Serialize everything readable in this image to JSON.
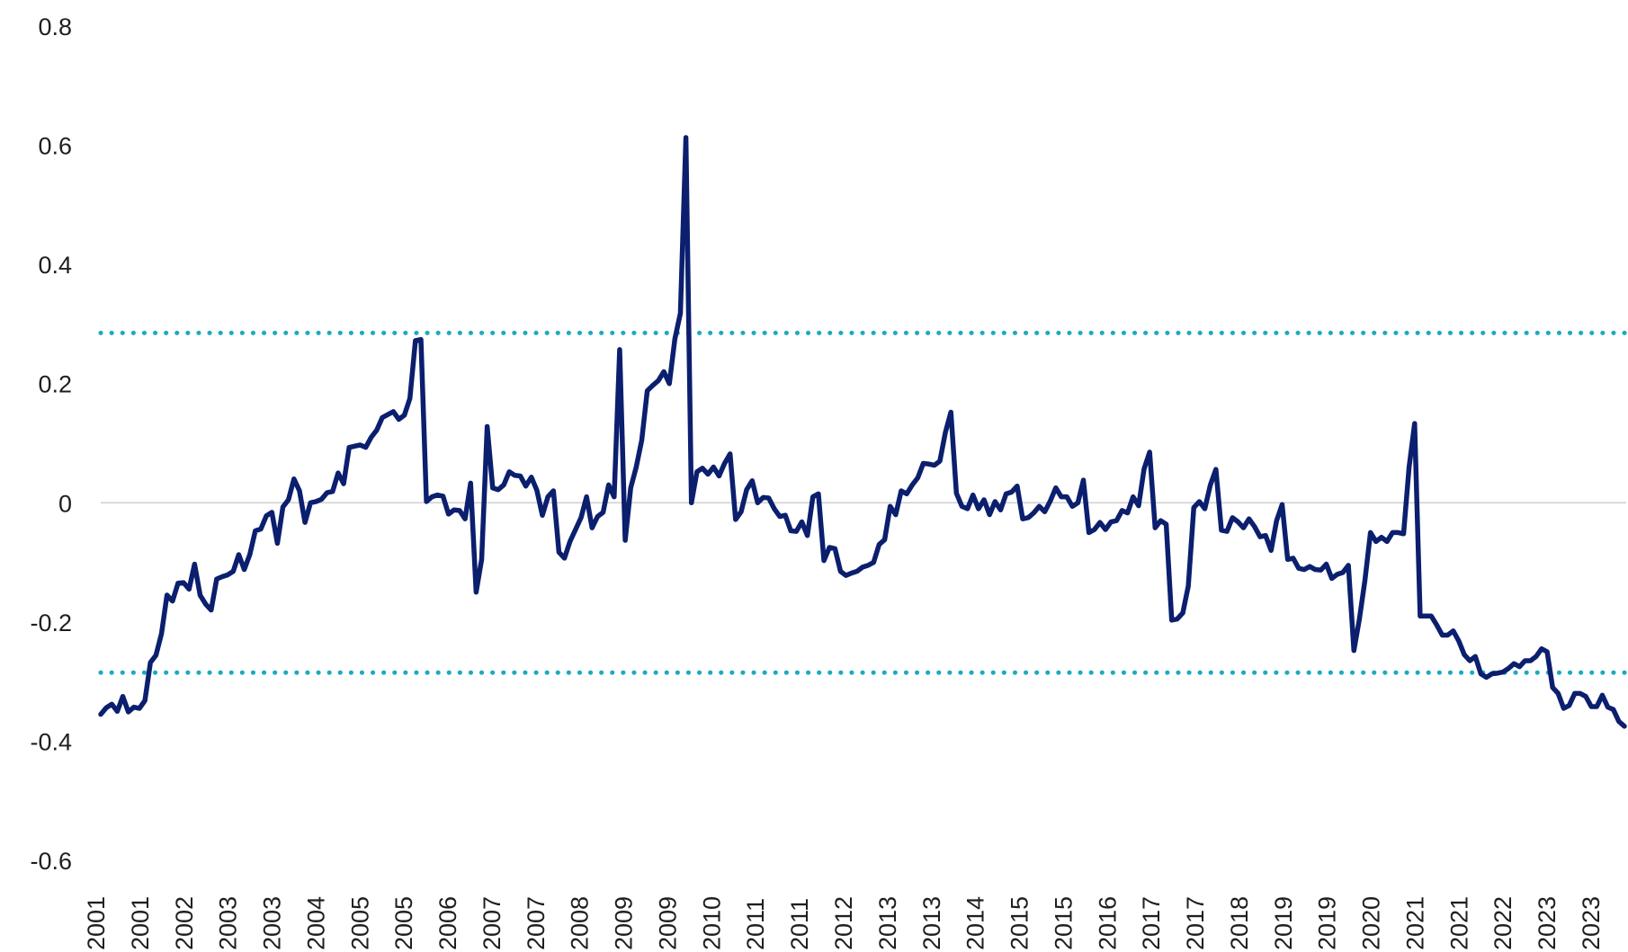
{
  "chart_data": {
    "type": "line",
    "title": "",
    "xlabel": "",
    "ylabel": "",
    "ylim": [
      -0.6,
      0.8
    ],
    "y_ticks": [
      "0.8",
      "0.6",
      "0.4",
      "0.2",
      "0",
      "-0.2",
      "-0.4",
      "-0.6"
    ],
    "x_tick_labels": [
      "2001",
      "2001",
      "2002",
      "2003",
      "2003",
      "2004",
      "2005",
      "2005",
      "2006",
      "2007",
      "2007",
      "2008",
      "2009",
      "2009",
      "2010",
      "2011",
      "2011",
      "2012",
      "2013",
      "2013",
      "2014",
      "2015",
      "2015",
      "2016",
      "2017",
      "2017",
      "2018",
      "2019",
      "2019",
      "2020",
      "2021",
      "2021",
      "2022",
      "2023",
      "2023"
    ],
    "grid": false,
    "legend": "none",
    "zero_line": true,
    "series": [
      {
        "color": "#0b1f6e",
        "values": [
          -0.355,
          -0.344,
          -0.338,
          -0.35,
          -0.325,
          -0.351,
          -0.343,
          -0.345,
          -0.332,
          -0.268,
          -0.256,
          -0.22,
          -0.155,
          -0.165,
          -0.135,
          -0.134,
          -0.145,
          -0.103,
          -0.155,
          -0.17,
          -0.18,
          -0.128,
          -0.124,
          -0.121,
          -0.115,
          -0.087,
          -0.112,
          -0.087,
          -0.047,
          -0.044,
          -0.022,
          -0.016,
          -0.068,
          -0.007,
          0.005,
          0.04,
          0.02,
          -0.033,
          0.0,
          0.002,
          0.006,
          0.017,
          0.019,
          0.05,
          0.032,
          0.093,
          0.095,
          0.097,
          0.093,
          0.11,
          0.122,
          0.143,
          0.148,
          0.153,
          0.14,
          0.147,
          0.175,
          0.272,
          0.274,
          0.002,
          0.01,
          0.013,
          0.011,
          -0.019,
          -0.012,
          -0.013,
          -0.027,
          0.033,
          -0.15,
          -0.095,
          0.128,
          0.025,
          0.022,
          0.03,
          0.052,
          0.046,
          0.045,
          0.028,
          0.043,
          0.021,
          -0.021,
          0.01,
          0.02,
          -0.083,
          -0.093,
          -0.065,
          -0.045,
          -0.025,
          0.01,
          -0.042,
          -0.023,
          -0.016,
          0.03,
          0.01,
          0.257,
          -0.063,
          0.025,
          0.06,
          0.105,
          0.188,
          0.197,
          0.205,
          0.22,
          0.2,
          0.275,
          0.318,
          0.613,
          0.0,
          0.052,
          0.058,
          0.048,
          0.06,
          0.045,
          0.066,
          0.082,
          -0.028,
          -0.015,
          0.022,
          0.037,
          0.0,
          0.009,
          0.008,
          -0.01,
          -0.023,
          -0.021,
          -0.047,
          -0.048,
          -0.032,
          -0.055,
          0.01,
          0.015,
          -0.097,
          -0.075,
          -0.077,
          -0.115,
          -0.122,
          -0.118,
          -0.115,
          -0.108,
          -0.105,
          -0.1,
          -0.07,
          -0.062,
          -0.006,
          -0.02,
          0.02,
          0.015,
          0.03,
          0.042,
          0.066,
          0.065,
          0.063,
          0.07,
          0.118,
          0.152,
          0.016,
          -0.006,
          -0.01,
          0.013,
          -0.01,
          0.005,
          -0.02,
          0.002,
          -0.012,
          0.015,
          0.018,
          0.028,
          -0.027,
          -0.025,
          -0.017,
          -0.006,
          -0.015,
          0.003,
          0.025,
          0.01,
          0.01,
          -0.006,
          0.0,
          0.038,
          -0.05,
          -0.045,
          -0.033,
          -0.045,
          -0.032,
          -0.03,
          -0.013,
          -0.017,
          0.01,
          -0.005,
          0.057,
          0.085,
          -0.042,
          -0.03,
          -0.036,
          -0.197,
          -0.195,
          -0.185,
          -0.14,
          -0.008,
          0.002,
          -0.01,
          0.03,
          0.056,
          -0.046,
          -0.048,
          -0.025,
          -0.032,
          -0.042,
          -0.027,
          -0.04,
          -0.057,
          -0.055,
          -0.08,
          -0.03,
          -0.003,
          -0.095,
          -0.093,
          -0.11,
          -0.112,
          -0.107,
          -0.112,
          -0.113,
          -0.103,
          -0.127,
          -0.12,
          -0.117,
          -0.105,
          -0.248,
          -0.195,
          -0.13,
          -0.05,
          -0.065,
          -0.058,
          -0.065,
          -0.05,
          -0.05,
          -0.052,
          0.06,
          0.133,
          -0.19,
          -0.19,
          -0.19,
          -0.205,
          -0.222,
          -0.222,
          -0.215,
          -0.232,
          -0.255,
          -0.265,
          -0.258,
          -0.287,
          -0.293,
          -0.287,
          -0.286,
          -0.284,
          -0.278,
          -0.27,
          -0.275,
          -0.265,
          -0.265,
          -0.258,
          -0.245,
          -0.25,
          -0.31,
          -0.32,
          -0.345,
          -0.34,
          -0.32,
          -0.32,
          -0.325,
          -0.342,
          -0.342,
          -0.323,
          -0.343,
          -0.347,
          -0.367,
          -0.375
        ]
      }
    ],
    "reference_lines": [
      {
        "value": 0.285,
        "color": "#1aabbf",
        "style": "dotted"
      },
      {
        "value": -0.285,
        "color": "#1aabbf",
        "style": "dotted"
      }
    ]
  }
}
